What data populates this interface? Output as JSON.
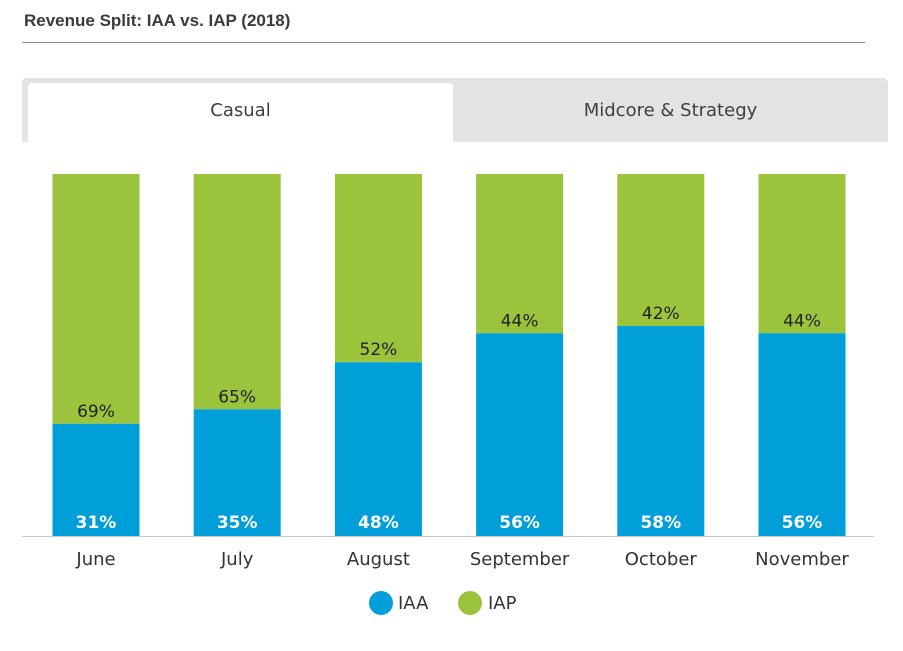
{
  "title": "Revenue Split: IAA vs. IAP (2018)",
  "tabs": [
    {
      "label": "Casual",
      "active": true
    },
    {
      "label": "Midcore & Strategy",
      "active": false
    }
  ],
  "colors": {
    "iaa": "#009fd9",
    "iap": "#9bc33b",
    "baseline": "#c9c9c9"
  },
  "chart_data": {
    "type": "bar",
    "stacked": true,
    "title": "Revenue Split: IAA vs. IAP (2018)",
    "xlabel": "",
    "ylabel": "",
    "ylim": [
      0,
      100
    ],
    "grid": false,
    "categories": [
      "June",
      "July",
      "August",
      "September",
      "October",
      "November"
    ],
    "series": [
      {
        "name": "IAA",
        "values": [
          31,
          35,
          48,
          56,
          58,
          56
        ],
        "labels": [
          "31%",
          "35%",
          "48%",
          "56%",
          "58%",
          "56%"
        ]
      },
      {
        "name": "IAP",
        "values": [
          69,
          65,
          52,
          44,
          42,
          44
        ],
        "labels": [
          "69%",
          "65%",
          "52%",
          "44%",
          "42%",
          "44%"
        ]
      }
    ],
    "legend": [
      "IAA",
      "IAP"
    ],
    "legend_position": "bottom-center"
  }
}
